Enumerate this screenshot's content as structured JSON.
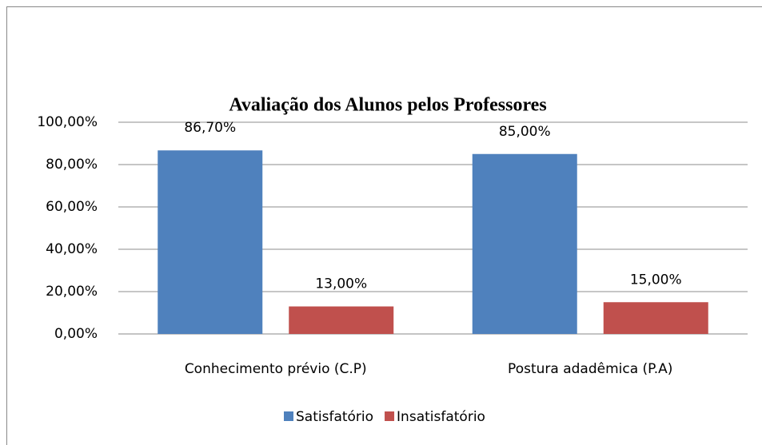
{
  "chart_data": {
    "type": "bar",
    "title": "Avaliação dos Alunos pelos Professores",
    "categories": [
      "Conhecimento prévio (C.P)",
      "Postura adadêmica (P.A)"
    ],
    "series": [
      {
        "name": "Satisfatório",
        "color": "#4f81bd",
        "values": [
          86.7,
          85
        ],
        "value_labels": [
          "86,70%",
          "85,00%"
        ]
      },
      {
        "name": "Insatisfatório",
        "color": "#c0504d",
        "values": [
          13,
          15
        ],
        "value_labels": [
          "13,00%",
          "15,00%"
        ]
      }
    ],
    "ylim": [
      0,
      100
    ],
    "yticks": [
      {
        "value": 0,
        "label": "0,00%"
      },
      {
        "value": 20,
        "label": "20,00%"
      },
      {
        "value": 40,
        "label": "40,00%"
      },
      {
        "value": 60,
        "label": "60,00%"
      },
      {
        "value": 80,
        "label": "80,00%"
      },
      {
        "value": 100,
        "label": "100,00%"
      }
    ],
    "grid": true,
    "legend": "bottom"
  }
}
